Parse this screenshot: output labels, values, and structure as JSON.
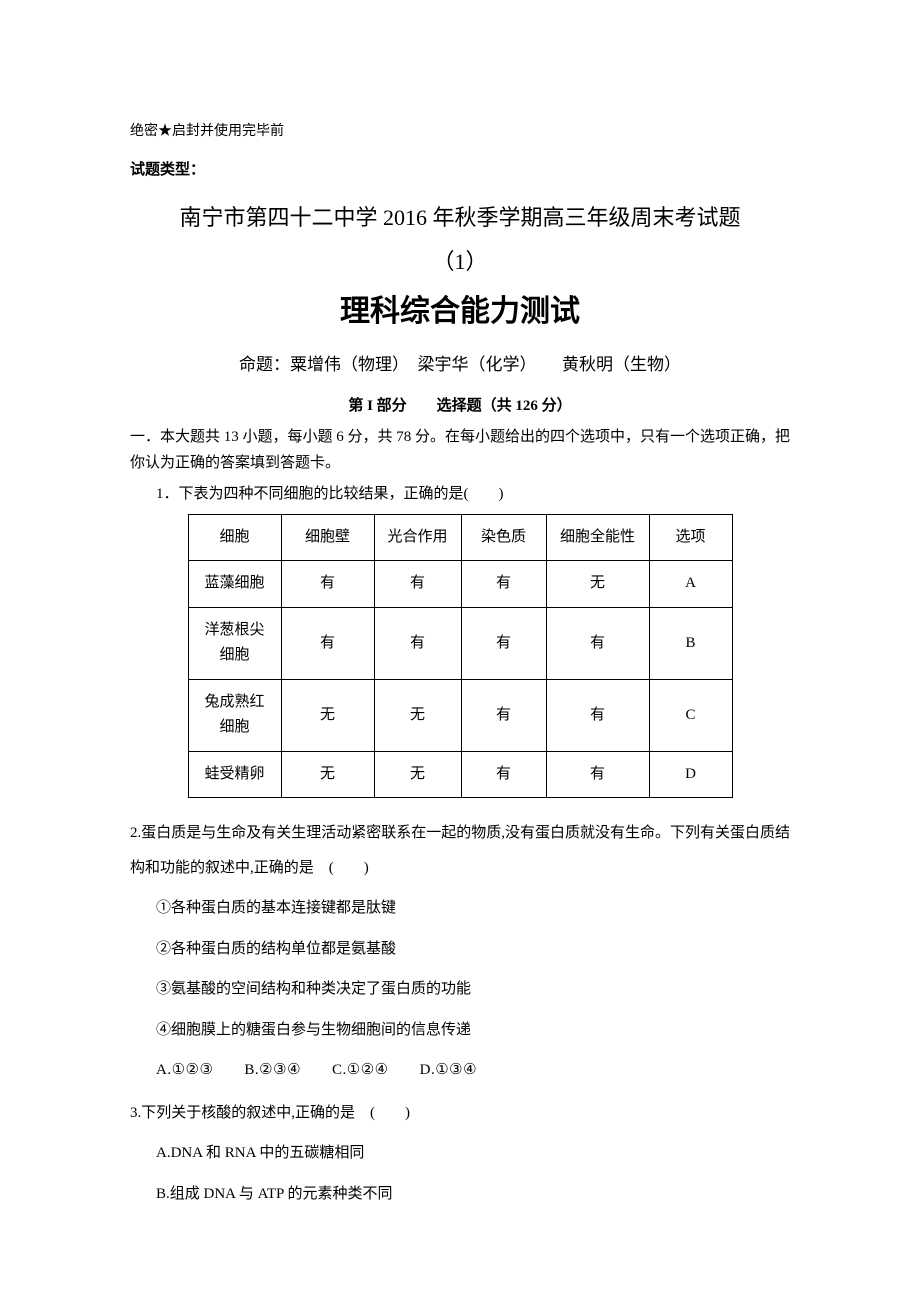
{
  "header": {
    "confidential": "绝密★启封并使用完毕前",
    "type_label": "试题类型：",
    "title_school": "南宁市第四十二中学 2016 年秋季学期高三年级周末考试题",
    "title_num": "（1）",
    "title_main": "理科综合能力测试",
    "authors": "命题：粟增伟（物理）　梁宇华（化学）　　黄秋明（生物）",
    "part_header": "第 I 部分　　选择题（共 126 分）",
    "section_instr": "一．本大题共 13 小题，每小题 6 分，共 78 分。在每小题给出的四个选项中，只有一个选项正确，把你认为正确的答案填到答题卡。"
  },
  "q1": {
    "stem": "1．下表为四种不同细胞的比较结果，正确的是(　　)",
    "table": {
      "headers": [
        "细胞",
        "细胞壁",
        "光合作用",
        "染色质",
        "细胞全能性",
        "选项"
      ],
      "rows": [
        [
          "蓝藻细胞",
          "有",
          "有",
          "有",
          "无",
          "A"
        ],
        [
          "洋葱根尖细胞",
          "有",
          "有",
          "有",
          "有",
          "B"
        ],
        [
          "兔成熟红细胞",
          "无",
          "无",
          "有",
          "有",
          "C"
        ],
        [
          "蛙受精卵",
          "无",
          "无",
          "有",
          "有",
          "D"
        ]
      ]
    }
  },
  "q2": {
    "stem": "2.蛋白质是与生命及有关生理活动紧密联系在一起的物质,没有蛋白质就没有生命。下列有关蛋白质结构和功能的叙述中,正确的是　(　　)",
    "items": [
      "①各种蛋白质的基本连接键都是肽键",
      "②各种蛋白质的结构单位都是氨基酸",
      "③氨基酸的空间结构和种类决定了蛋白质的功能",
      "④细胞膜上的糖蛋白参与生物细胞间的信息传递"
    ],
    "options": "A.①②③　　B.②③④　　C.①②④　　D.①③④"
  },
  "q3": {
    "stem": "3.下列关于核酸的叙述中,正确的是　(　　)",
    "items": [
      "A.DNA 和 RNA 中的五碳糖相同",
      "B.组成 DNA 与 ATP 的元素种类不同"
    ]
  }
}
